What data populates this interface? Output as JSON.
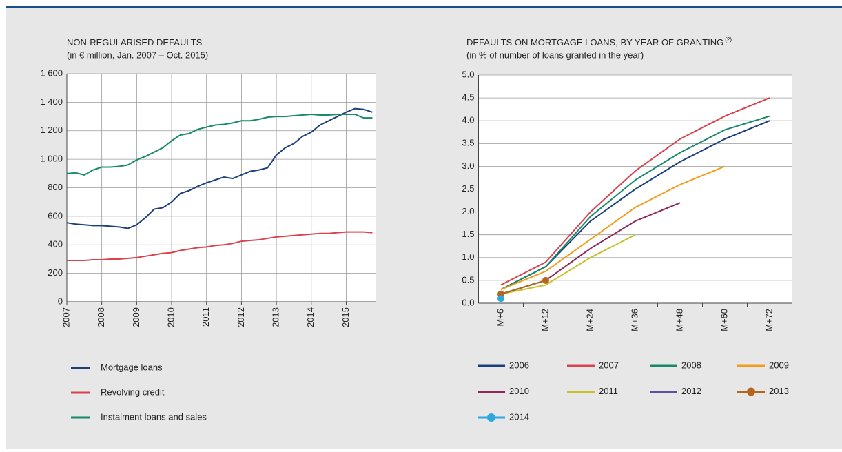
{
  "chart_data": [
    {
      "type": "line",
      "title": "NON-REGULARISED DEFAULTS",
      "subtitle": "(in € million, Jan. 2007 – Oct. 2015)",
      "x": [
        2007,
        2007.25,
        2007.5,
        2007.75,
        2008,
        2008.25,
        2008.5,
        2008.75,
        2009,
        2009.25,
        2009.5,
        2009.75,
        2010,
        2010.25,
        2010.5,
        2010.75,
        2011,
        2011.25,
        2011.5,
        2011.75,
        2012,
        2012.25,
        2012.5,
        2012.75,
        2013,
        2013.25,
        2013.5,
        2013.75,
        2014,
        2014.25,
        2014.5,
        2014.75,
        2015,
        2015.25,
        2015.5,
        2015.75
      ],
      "series": [
        {
          "name": "Mortgage loans",
          "color": "#1b3f7c",
          "values": [
            555,
            545,
            540,
            535,
            535,
            530,
            525,
            515,
            540,
            590,
            650,
            660,
            700,
            760,
            780,
            810,
            835,
            855,
            875,
            865,
            890,
            915,
            925,
            940,
            1030,
            1080,
            1110,
            1160,
            1190,
            1240,
            1270,
            1300,
            1330,
            1355,
            1350,
            1330
          ]
        },
        {
          "name": "Revolving credit",
          "color": "#d9434f",
          "values": [
            290,
            290,
            290,
            295,
            295,
            300,
            300,
            305,
            310,
            320,
            330,
            340,
            345,
            360,
            370,
            380,
            385,
            395,
            400,
            410,
            425,
            430,
            435,
            445,
            455,
            460,
            465,
            470,
            475,
            480,
            480,
            485,
            490,
            490,
            490,
            485
          ]
        },
        {
          "name": "Instalment loans and sales",
          "color": "#17896a",
          "values": [
            900,
            905,
            890,
            925,
            945,
            945,
            950,
            960,
            995,
            1020,
            1050,
            1080,
            1130,
            1170,
            1180,
            1210,
            1225,
            1240,
            1245,
            1255,
            1270,
            1270,
            1280,
            1295,
            1300,
            1300,
            1305,
            1310,
            1315,
            1310,
            1310,
            1315,
            1315,
            1315,
            1290,
            1290
          ]
        }
      ],
      "xlim": [
        2007,
        2015.84
      ],
      "xticks": [
        2007,
        2008,
        2009,
        2010,
        2011,
        2012,
        2013,
        2014,
        2015
      ],
      "ylim": [
        0,
        1600
      ],
      "yticks": [
        0,
        200,
        400,
        600,
        800,
        {
          "value": 1000,
          "label": "1 000"
        },
        {
          "value": 1200,
          "label": "1 200"
        },
        {
          "value": 1400,
          "label": "1 400"
        },
        {
          "value": 1600,
          "label": "1 600"
        }
      ],
      "grid": true,
      "vertical_grid": true
    },
    {
      "type": "line",
      "title": "DEFAULTS ON MORTGAGE LOANS, BY YEAR OF GRANTING",
      "title_note": "(2)",
      "subtitle": "(in % of number of loans granted in the year)",
      "categories": [
        "M+6",
        "M+12",
        "M+24",
        "M+36",
        "M+48",
        "M+60",
        "M+72"
      ],
      "series": [
        {
          "name": "2006",
          "color": "#1b3f7c",
          "values": [
            0.3,
            0.8,
            1.8,
            2.5,
            3.1,
            3.6,
            4.0
          ]
        },
        {
          "name": "2007",
          "color": "#d9434f",
          "values": [
            0.4,
            0.9,
            2.0,
            2.9,
            3.6,
            4.1,
            4.5
          ]
        },
        {
          "name": "2008",
          "color": "#17896a",
          "values": [
            0.3,
            0.8,
            1.9,
            2.7,
            3.3,
            3.8,
            4.1
          ]
        },
        {
          "name": "2009",
          "color": "#f39c1a",
          "values": [
            0.3,
            0.7,
            1.4,
            2.1,
            2.6,
            3.0,
            null
          ]
        },
        {
          "name": "2010",
          "color": "#8c2657",
          "values": [
            0.2,
            0.5,
            1.2,
            1.8,
            2.2,
            null,
            null
          ]
        },
        {
          "name": "2011",
          "color": "#c6c12c",
          "values": [
            0.2,
            0.4,
            1.0,
            1.5,
            null,
            null,
            null
          ]
        },
        {
          "name": "2012",
          "color": "#5b4f9e",
          "values": [
            0.2,
            0.5,
            null,
            null,
            null,
            null,
            null
          ]
        },
        {
          "name": "2013",
          "color": "#b5651d",
          "values": [
            0.2,
            0.5,
            null,
            null,
            null,
            null,
            null
          ],
          "marker": true
        },
        {
          "name": "2014",
          "color": "#2ea7e0",
          "values": [
            0.1,
            null,
            null,
            null,
            null,
            null,
            null
          ],
          "marker": true
        }
      ],
      "ylim": [
        0,
        5
      ],
      "yticks": [
        {
          "value": 0,
          "label": "0.0"
        },
        0.5,
        {
          "value": 1,
          "label": "1.0"
        },
        1.5,
        {
          "value": 2,
          "label": "2.0"
        },
        2.5,
        {
          "value": 3,
          "label": "3.0"
        },
        3.5,
        {
          "value": 4,
          "label": "4.0"
        },
        4.5,
        {
          "value": 5,
          "label": "5.0"
        }
      ],
      "grid": true,
      "vertical_grid": false
    }
  ]
}
